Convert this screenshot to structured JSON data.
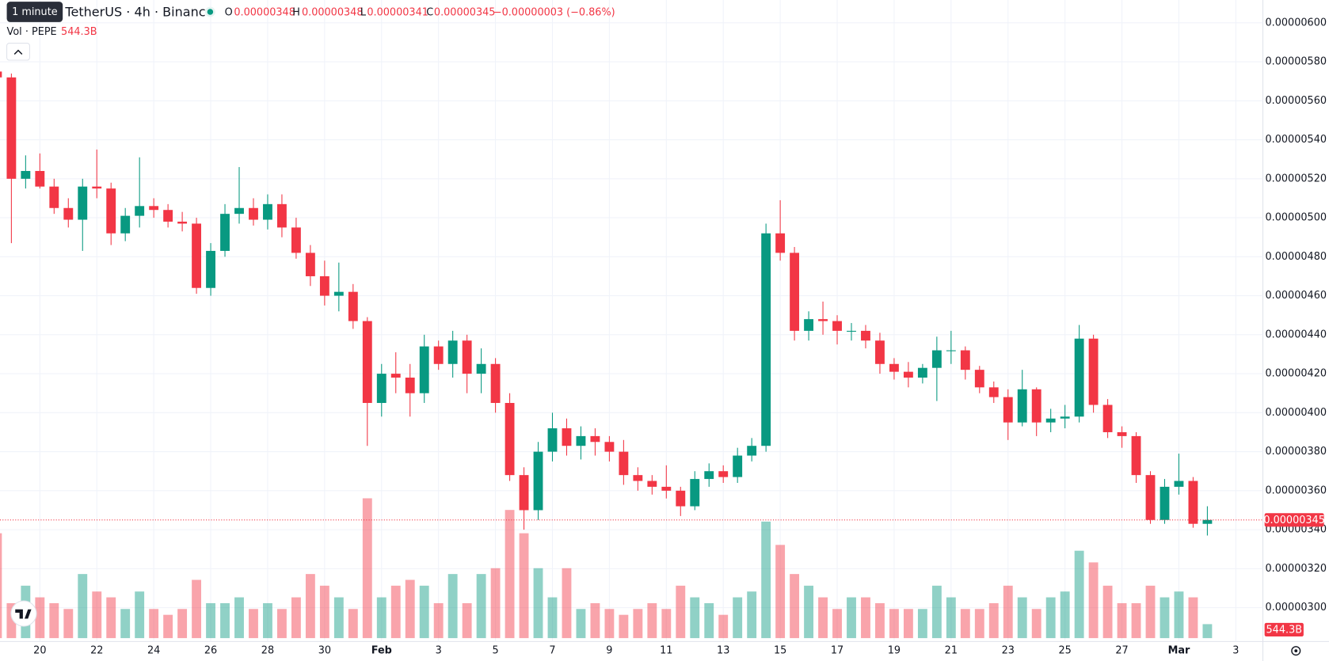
{
  "chart_data": {
    "type": "candlestick",
    "title": "TetherUS · 4h · Binance",
    "tooltip": "1 minute",
    "legend": {
      "open_label": "O",
      "open": "0.00000348",
      "high_label": "H",
      "high": "0.00000348",
      "low_label": "L",
      "low": "0.00000341",
      "close_label": "C",
      "close": "0.00000345",
      "change": "−0.00000003 (−0.86%)"
    },
    "volume_title": "Vol · PEPE",
    "volume_value": "544.3B",
    "up_color": "#089981",
    "down_color": "#f23645",
    "open": [
      5.75e-06,
      5.72e-06,
      5.2e-06,
      5.24e-06,
      5.16e-06,
      5.05e-06,
      4.99e-06,
      5.16e-06,
      5.15e-06,
      4.92e-06,
      5.01e-06,
      5.06e-06,
      5.04e-06,
      4.98e-06,
      4.97e-06,
      4.64e-06,
      4.83e-06,
      5.02e-06,
      5.05e-06,
      4.99e-06,
      5.07e-06,
      4.95e-06,
      4.82e-06,
      4.7e-06,
      4.6e-06,
      4.62e-06,
      4.47e-06,
      4.05e-06,
      4.2e-06,
      4.18e-06,
      4.1e-06,
      4.34e-06,
      4.25e-06,
      4.37e-06,
      4.2e-06,
      4.25e-06,
      4.05e-06,
      3.68e-06,
      3.5e-06,
      3.8e-06,
      3.92e-06,
      3.83e-06,
      3.88e-06,
      3.85e-06,
      3.8e-06,
      3.68e-06,
      3.65e-06,
      3.62e-06,
      3.6e-06,
      3.52e-06,
      3.66e-06,
      3.7e-06,
      3.67e-06,
      3.78e-06,
      3.83e-06,
      4.92e-06,
      4.82e-06,
      4.42e-06,
      4.48e-06,
      4.47e-06,
      4.42e-06,
      4.42e-06,
      4.37e-06,
      4.25e-06,
      4.21e-06,
      4.18e-06,
      4.23e-06,
      4.32e-06,
      4.32e-06,
      4.22e-06,
      4.13e-06,
      4.08e-06,
      3.95e-06,
      4.12e-06,
      3.95e-06,
      3.97e-06,
      3.98e-06,
      4.38e-06,
      4.04e-06,
      3.9e-06,
      3.88e-06,
      3.68e-06,
      3.45e-06,
      3.62e-06,
      3.65e-06,
      3.43e-06
    ],
    "high": [
      5.8e-06,
      5.74e-06,
      5.32e-06,
      5.33e-06,
      5.2e-06,
      5.1e-06,
      5.2e-06,
      5.35e-06,
      5.18e-06,
      5.05e-06,
      5.31e-06,
      5.1e-06,
      5.07e-06,
      5.03e-06,
      5e-06,
      4.87e-06,
      5.07e-06,
      5.26e-06,
      5.1e-06,
      5.12e-06,
      5.12e-06,
      5e-06,
      4.86e-06,
      4.78e-06,
      4.77e-06,
      4.66e-06,
      4.49e-06,
      4.25e-06,
      4.31e-06,
      4.25e-06,
      4.4e-06,
      4.37e-06,
      4.42e-06,
      4.4e-06,
      4.33e-06,
      4.28e-06,
      4.1e-06,
      3.72e-06,
      3.85e-06,
      4e-06,
      3.97e-06,
      3.93e-06,
      3.92e-06,
      3.88e-06,
      3.86e-06,
      3.72e-06,
      3.68e-06,
      3.73e-06,
      3.62e-06,
      3.7e-06,
      3.74e-06,
      3.73e-06,
      3.82e-06,
      3.87e-06,
      4.97e-06,
      5.09e-06,
      4.85e-06,
      4.52e-06,
      4.57e-06,
      4.5e-06,
      4.46e-06,
      4.45e-06,
      4.41e-06,
      4.28e-06,
      4.26e-06,
      4.25e-06,
      4.39e-06,
      4.42e-06,
      4.34e-06,
      4.24e-06,
      4.16e-06,
      4.12e-06,
      4.22e-06,
      4.13e-06,
      4.02e-06,
      4.04e-06,
      4.45e-06,
      4.4e-06,
      4.07e-06,
      3.93e-06,
      3.9e-06,
      3.7e-06,
      3.66e-06,
      3.79e-06,
      3.67e-06,
      3.52e-06
    ],
    "low": [
      5.65e-06,
      4.87e-06,
      5.15e-06,
      5.15e-06,
      5.02e-06,
      4.95e-06,
      4.83e-06,
      5.1e-06,
      4.86e-06,
      4.88e-06,
      4.95e-06,
      5e-06,
      4.95e-06,
      4.93e-06,
      4.61e-06,
      4.6e-06,
      4.8e-06,
      4.97e-06,
      4.96e-06,
      4.94e-06,
      4.9e-06,
      4.79e-06,
      4.65e-06,
      4.55e-06,
      4.52e-06,
      4.43e-06,
      3.83e-06,
      3.98e-06,
      4.1e-06,
      3.98e-06,
      4.05e-06,
      4.22e-06,
      4.18e-06,
      4.1e-06,
      4.1e-06,
      4e-06,
      3.65e-06,
      3.4e-06,
      3.45e-06,
      3.75e-06,
      3.78e-06,
      3.76e-06,
      3.78e-06,
      3.75e-06,
      3.63e-06,
      3.6e-06,
      3.58e-06,
      3.56e-06,
      3.47e-06,
      3.5e-06,
      3.62e-06,
      3.64e-06,
      3.64e-06,
      3.75e-06,
      3.8e-06,
      4.78e-06,
      4.37e-06,
      4.37e-06,
      4.4e-06,
      4.35e-06,
      4.37e-06,
      4.33e-06,
      4.2e-06,
      4.17e-06,
      4.13e-06,
      4.15e-06,
      4.06e-06,
      4.25e-06,
      4.17e-06,
      4.1e-06,
      4.05e-06,
      3.86e-06,
      3.93e-06,
      3.88e-06,
      3.9e-06,
      3.92e-06,
      3.95e-06,
      4e-06,
      3.87e-06,
      3.82e-06,
      3.64e-06,
      3.43e-06,
      3.43e-06,
      3.58e-06,
      3.41e-06,
      3.37e-06
    ],
    "close": [
      5.72e-06,
      5.2e-06,
      5.24e-06,
      5.16e-06,
      5.05e-06,
      4.99e-06,
      5.16e-06,
      5.15e-06,
      4.92e-06,
      5.01e-06,
      5.06e-06,
      5.04e-06,
      4.98e-06,
      4.97e-06,
      4.64e-06,
      4.83e-06,
      5.02e-06,
      5.05e-06,
      4.99e-06,
      5.07e-06,
      4.95e-06,
      4.82e-06,
      4.7e-06,
      4.6e-06,
      4.62e-06,
      4.47e-06,
      4.05e-06,
      4.2e-06,
      4.18e-06,
      4.1e-06,
      4.34e-06,
      4.25e-06,
      4.37e-06,
      4.2e-06,
      4.25e-06,
      4.05e-06,
      3.68e-06,
      3.5e-06,
      3.8e-06,
      3.92e-06,
      3.83e-06,
      3.88e-06,
      3.85e-06,
      3.8e-06,
      3.68e-06,
      3.65e-06,
      3.62e-06,
      3.6e-06,
      3.52e-06,
      3.66e-06,
      3.7e-06,
      3.67e-06,
      3.78e-06,
      3.83e-06,
      4.92e-06,
      4.82e-06,
      4.42e-06,
      4.48e-06,
      4.47e-06,
      4.42e-06,
      4.42e-06,
      4.37e-06,
      4.25e-06,
      4.21e-06,
      4.18e-06,
      4.23e-06,
      4.32e-06,
      4.32e-06,
      4.22e-06,
      4.13e-06,
      4.08e-06,
      3.95e-06,
      4.12e-06,
      3.95e-06,
      3.97e-06,
      3.98e-06,
      4.38e-06,
      4.04e-06,
      3.9e-06,
      3.88e-06,
      3.68e-06,
      3.45e-06,
      3.62e-06,
      3.65e-06,
      3.43e-06,
      3.45e-06
    ],
    "volume": [
      9000,
      3000,
      4500,
      3500,
      3000,
      2500,
      5500,
      4000,
      3500,
      2500,
      4000,
      2500,
      2000,
      2500,
      5000,
      3000,
      3000,
      3500,
      2500,
      3000,
      2500,
      3500,
      5500,
      4500,
      3500,
      2500,
      12000,
      3500,
      4500,
      5000,
      4500,
      3000,
      5500,
      3000,
      5500,
      6000,
      11000,
      9000,
      6000,
      3500,
      6000,
      2500,
      3000,
      2500,
      2000,
      2500,
      3000,
      2500,
      4500,
      3500,
      3000,
      2000,
      3500,
      4000,
      10000,
      8000,
      5500,
      4500,
      3500,
      2500,
      3500,
      3500,
      3000,
      2500,
      2500,
      2500,
      4500,
      3500,
      2500,
      2500,
      3000,
      4500,
      3500,
      2500,
      3500,
      4000,
      7500,
      6500,
      4500,
      3000,
      3000,
      4500,
      3500,
      4000,
      3500,
      1200
    ],
    "last_price": {
      "value": 3.45e-06,
      "label": "0.00000345"
    },
    "xlim": [
      0.2,
      88.9
    ],
    "xticks": [
      {
        "value": 3,
        "label": "20"
      },
      {
        "value": 7,
        "label": "22"
      },
      {
        "value": 11,
        "label": "24"
      },
      {
        "value": 15,
        "label": "26"
      },
      {
        "value": 19,
        "label": "28"
      },
      {
        "value": 23,
        "label": "30"
      },
      {
        "value": 27,
        "label": "Feb"
      },
      {
        "value": 31,
        "label": "3"
      },
      {
        "value": 35,
        "label": "5"
      },
      {
        "value": 39,
        "label": "7"
      },
      {
        "value": 43,
        "label": "9"
      },
      {
        "value": 47,
        "label": "11"
      },
      {
        "value": 51,
        "label": "13"
      },
      {
        "value": 55,
        "label": "15"
      },
      {
        "value": 59,
        "label": "17"
      },
      {
        "value": 63,
        "label": "19"
      },
      {
        "value": 67,
        "label": "21"
      },
      {
        "value": 71,
        "label": "23"
      },
      {
        "value": 75,
        "label": "25"
      },
      {
        "value": 79,
        "label": "27"
      },
      {
        "value": 83,
        "label": "Mar"
      },
      {
        "value": 87,
        "label": "3"
      }
    ],
    "ylim": [
      2.835e-06,
      6.117e-06
    ],
    "yticks": [
      {
        "value": 3e-06,
        "label": "0.00000300"
      },
      {
        "value": 3.2e-06,
        "label": "0.00000320"
      },
      {
        "value": 3.4e-06,
        "label": "0.00000340"
      },
      {
        "value": 3.6e-06,
        "label": "0.00000360"
      },
      {
        "value": 3.8e-06,
        "label": "0.00000380"
      },
      {
        "value": 4e-06,
        "label": "0.00000400"
      },
      {
        "value": 4.2e-06,
        "label": "0.00000420"
      },
      {
        "value": 4.4e-06,
        "label": "0.00000440"
      },
      {
        "value": 4.6e-06,
        "label": "0.00000460"
      },
      {
        "value": 4.8e-06,
        "label": "0.00000480"
      },
      {
        "value": 5e-06,
        "label": "0.00000500"
      },
      {
        "value": 5.2e-06,
        "label": "0.00000520"
      },
      {
        "value": 5.4e-06,
        "label": "0.00000540"
      },
      {
        "value": 5.6e-06,
        "label": "0.00000560"
      },
      {
        "value": 5.8e-06,
        "label": "0.00000580"
      },
      {
        "value": 6e-06,
        "label": "0.00000600"
      }
    ],
    "grid": true
  }
}
